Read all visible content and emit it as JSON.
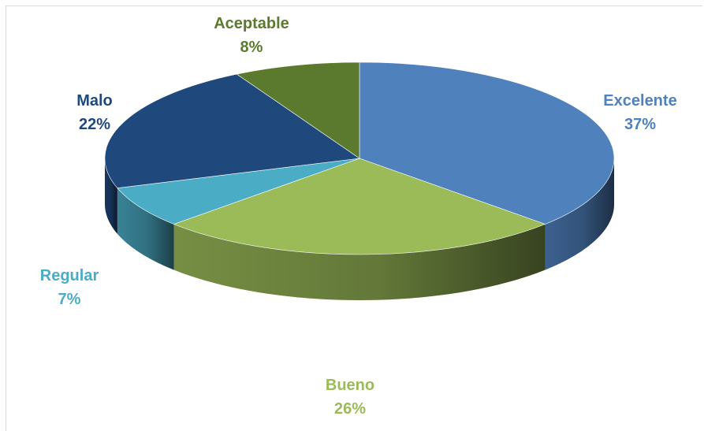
{
  "chart_data": {
    "type": "pie",
    "style": "3d",
    "slices": [
      {
        "name": "Excelente",
        "value": 37,
        "label": "Excelente",
        "pct": "37%",
        "color": "#4f81bd"
      },
      {
        "name": "Bueno",
        "value": 26,
        "label": "Bueno",
        "pct": "26%",
        "color": "#9bbb59"
      },
      {
        "name": "Regular",
        "value": 7,
        "label": "Regular",
        "pct": "7%",
        "color": "#4bacc6"
      },
      {
        "name": "Malo",
        "value": 22,
        "label": "Malo",
        "pct": "22%",
        "color": "#1f497d"
      },
      {
        "name": "Aceptable",
        "value": 8,
        "label": "Aceptable",
        "pct": "8%",
        "color": "#5b7a2e"
      }
    ],
    "label_colors": {
      "Excelente": "#4f81bd",
      "Bueno": "#9bbb59",
      "Regular": "#4bacc6",
      "Malo": "#1f497d",
      "Aceptable": "#5b7a2e"
    }
  }
}
